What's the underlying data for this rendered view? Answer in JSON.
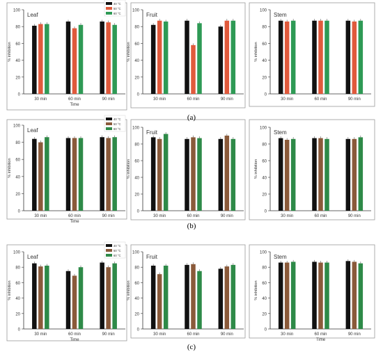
{
  "colors": {
    "40": "#111111",
    "50": "#e05a3c",
    "60": "#2e9a55",
    "50_b": "#8a5a3a",
    "60_b": "#2e8a48",
    "axis": "#333333",
    "frame": "#9a9a9a",
    "text": "#333333"
  },
  "row_labels": [
    "(a)",
    "(b)",
    "(c)"
  ],
  "chart_data": [
    {
      "type": "bar",
      "title": "Leaf",
      "xlabel": "Time",
      "ylabel": "% inhibition",
      "ylim": [
        0,
        100
      ],
      "yticks": [
        0,
        20,
        40,
        60,
        80,
        100
      ],
      "categories": [
        "30 min",
        "60 min",
        "90 min"
      ],
      "legend": [
        "40 °C",
        "50 °C",
        "60 °C"
      ],
      "legend_position": "top-right",
      "series": [
        {
          "name": "40 °C",
          "values": [
            81,
            86,
            86
          ]
        },
        {
          "name": "50 °C",
          "values": [
            83,
            78,
            85
          ]
        },
        {
          "name": "60 °C",
          "values": [
            83,
            82,
            82
          ]
        }
      ]
    },
    {
      "type": "bar",
      "title": "Fruit",
      "xlabel": "",
      "ylabel": "% inhibition",
      "ylim": [
        0,
        100
      ],
      "yticks": [
        0,
        20,
        40,
        60,
        80,
        100
      ],
      "categories": [
        "30 min",
        "60 min",
        "90 min"
      ],
      "legend": [],
      "series": [
        {
          "name": "40 °C",
          "values": [
            82,
            87,
            80
          ]
        },
        {
          "name": "50 °C",
          "values": [
            87,
            58,
            87
          ]
        },
        {
          "name": "60 °C",
          "values": [
            86,
            84,
            87
          ]
        }
      ]
    },
    {
      "type": "bar",
      "title": "Stem",
      "xlabel": "",
      "ylabel": "% inhibition",
      "ylim": [
        0,
        100
      ],
      "yticks": [
        0,
        20,
        40,
        60,
        80,
        100
      ],
      "categories": [
        "30 min",
        "60 min",
        "90 min"
      ],
      "legend": [],
      "series": [
        {
          "name": "40 °C",
          "values": [
            87,
            87,
            87
          ]
        },
        {
          "name": "50 °C",
          "values": [
            86,
            87,
            86
          ]
        },
        {
          "name": "60 °C",
          "values": [
            87,
            87,
            87
          ]
        }
      ]
    },
    {
      "type": "bar",
      "title": "Leaf",
      "xlabel": "Time",
      "ylabel": "% inhibition",
      "ylim": [
        0,
        100
      ],
      "yticks": [
        0,
        20,
        40,
        60,
        80,
        100
      ],
      "categories": [
        "30 min",
        "60 min",
        "90 min"
      ],
      "legend": [
        "40 °C",
        "50 °C",
        "60 °C"
      ],
      "legend_position": "top-right",
      "series": [
        {
          "name": "40 °C",
          "values": [
            84,
            85,
            86
          ]
        },
        {
          "name": "50 °C",
          "values": [
            80,
            85,
            85
          ]
        },
        {
          "name": "60 °C",
          "values": [
            86,
            85,
            86
          ]
        }
      ]
    },
    {
      "type": "bar",
      "title": "Fruit",
      "xlabel": "",
      "ylabel": "% inhibition",
      "ylim": [
        0,
        100
      ],
      "yticks": [
        0,
        20,
        40,
        60,
        80,
        100
      ],
      "categories": [
        "30 min",
        "60 min",
        "90 min"
      ],
      "legend": [],
      "series": [
        {
          "name": "40 °C",
          "values": [
            88,
            86,
            86
          ]
        },
        {
          "name": "50 °C",
          "values": [
            86,
            88,
            90
          ]
        },
        {
          "name": "60 °C",
          "values": [
            92,
            87,
            86
          ]
        }
      ]
    },
    {
      "type": "bar",
      "title": "Stem",
      "xlabel": "",
      "ylabel": "% inhibition",
      "ylim": [
        0,
        100
      ],
      "yticks": [
        0,
        20,
        40,
        60,
        80,
        100
      ],
      "categories": [
        "30 min",
        "60 min",
        "90 min"
      ],
      "legend": [],
      "series": [
        {
          "name": "40 °C",
          "values": [
            87,
            87,
            86
          ]
        },
        {
          "name": "50 °C",
          "values": [
            85,
            87,
            86
          ]
        },
        {
          "name": "60 °C",
          "values": [
            86,
            86,
            88
          ]
        }
      ]
    },
    {
      "type": "bar",
      "title": "Leaf",
      "xlabel": "Time",
      "ylabel": "% inhibition",
      "ylim": [
        0,
        100
      ],
      "yticks": [
        0,
        20,
        40,
        60,
        80,
        100
      ],
      "categories": [
        "30 min",
        "60 min",
        "90 min"
      ],
      "legend": [
        "40 °C",
        "50 °C",
        "60 °C"
      ],
      "legend_position": "top-right",
      "series": [
        {
          "name": "40 °C",
          "values": [
            85,
            75,
            86
          ]
        },
        {
          "name": "50 °C",
          "values": [
            81,
            69,
            80
          ]
        },
        {
          "name": "60 °C",
          "values": [
            82,
            80,
            85
          ]
        }
      ]
    },
    {
      "type": "bar",
      "title": "Fruit",
      "xlabel": "",
      "ylabel": "% inhibition",
      "ylim": [
        0,
        100
      ],
      "yticks": [
        0,
        20,
        40,
        60,
        80,
        100
      ],
      "categories": [
        "30 min",
        "60 min",
        "90 min"
      ],
      "legend": [],
      "series": [
        {
          "name": "40 °C",
          "values": [
            82,
            83,
            78
          ]
        },
        {
          "name": "50 °C",
          "values": [
            71,
            84,
            81
          ]
        },
        {
          "name": "60 °C",
          "values": [
            82,
            75,
            83
          ]
        }
      ]
    },
    {
      "type": "bar",
      "title": "Stem",
      "xlabel": "Time",
      "ylabel": "% inhibition",
      "ylim": [
        0,
        100
      ],
      "yticks": [
        0,
        20,
        40,
        60,
        80,
        100
      ],
      "categories": [
        "30 min",
        "60 min",
        "90 min"
      ],
      "legend": [],
      "series": [
        {
          "name": "40 °C",
          "values": [
            86,
            87,
            88
          ]
        },
        {
          "name": "50 °C",
          "values": [
            86,
            86,
            87
          ]
        },
        {
          "name": "60 °C",
          "values": [
            87,
            86,
            85
          ]
        }
      ]
    }
  ]
}
